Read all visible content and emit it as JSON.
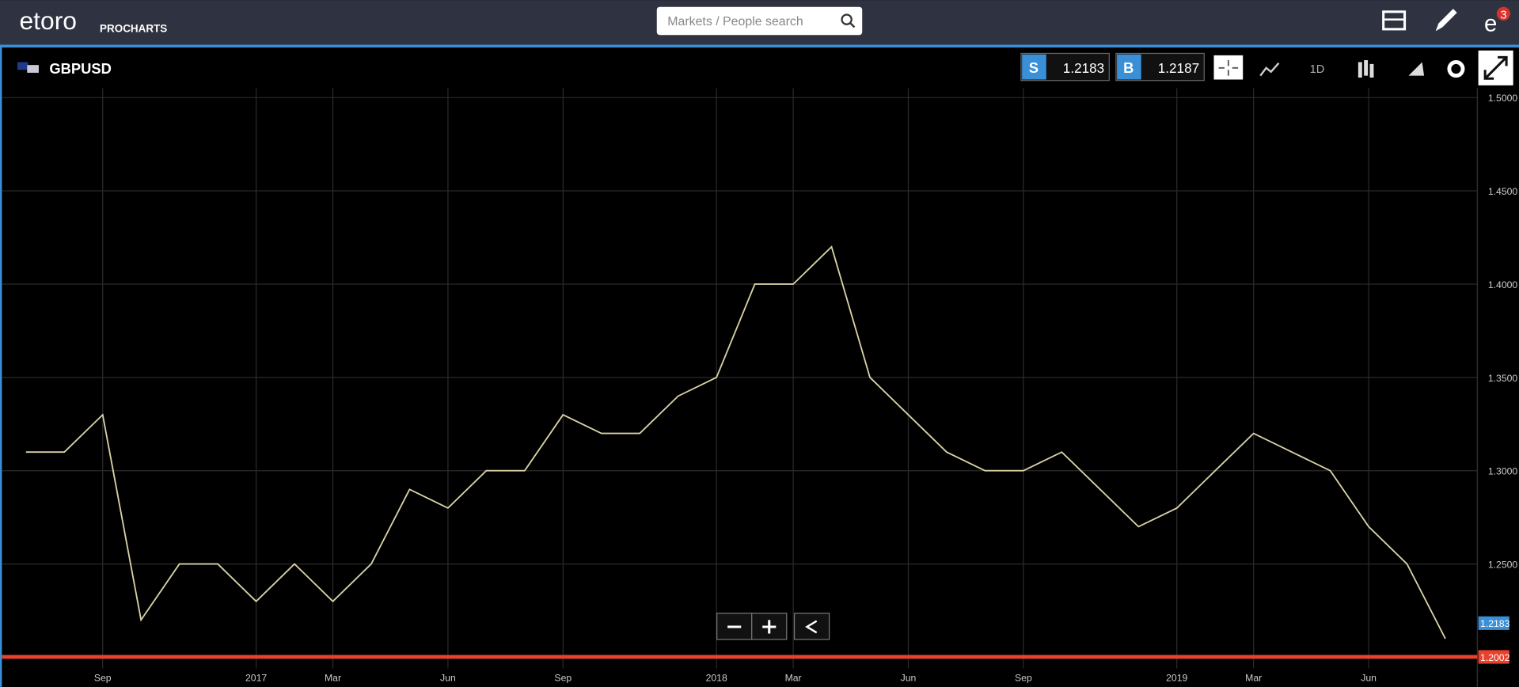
{
  "header": {
    "logo": "etoro",
    "product": "PROCHARTS",
    "search_placeholder": "Markets / People search",
    "notifications": "3"
  },
  "toolbar": {
    "symbol": "GBPUSD",
    "sell_label": "S",
    "sell_price": "1.2183",
    "buy_label": "B",
    "buy_price": "1.2187",
    "timeframe": "1D"
  },
  "chart_data": {
    "type": "line",
    "categories": [
      null,
      null,
      "Sep",
      null,
      null,
      null,
      "2017",
      null,
      "Mar",
      null,
      null,
      "Jun",
      null,
      null,
      "Sep",
      null,
      null,
      null,
      "2018",
      null,
      "Mar",
      null,
      null,
      "Jun",
      null,
      null,
      "Sep",
      null,
      null,
      null,
      "2019",
      null,
      "Mar",
      null,
      null,
      "Jun",
      null,
      null
    ],
    "series": [
      {
        "name": "GBPUSD",
        "color": "#d9d2a6",
        "values": [
          1.31,
          1.31,
          1.33,
          1.22,
          1.25,
          1.25,
          1.23,
          1.25,
          1.23,
          1.25,
          1.29,
          1.28,
          1.3,
          1.3,
          1.33,
          1.32,
          1.32,
          1.34,
          1.35,
          1.4,
          1.4,
          1.42,
          1.35,
          1.33,
          1.31,
          1.3,
          1.3,
          1.31,
          1.29,
          1.27,
          1.28,
          1.3,
          1.32,
          1.31,
          1.3,
          1.27,
          1.25,
          1.21
        ]
      }
    ],
    "ylim": [
      1.194,
      1.505
    ],
    "yticks": [
      {
        "value": 1.25,
        "label": "1.2500"
      },
      {
        "value": 1.3,
        "label": "1.3000"
      },
      {
        "value": 1.35,
        "label": "1.3500"
      },
      {
        "value": 1.4,
        "label": "1.4000"
      },
      {
        "value": 1.45,
        "label": "1.4500"
      },
      {
        "value": 1.5,
        "label": "1.5000"
      }
    ],
    "grid": true,
    "price_tag": {
      "value": 1.2183,
      "label": "1.2183",
      "color": "#3a8fd6"
    },
    "hline": {
      "value": 1.2002,
      "label": "1.2002",
      "color": "#e8412c"
    }
  }
}
